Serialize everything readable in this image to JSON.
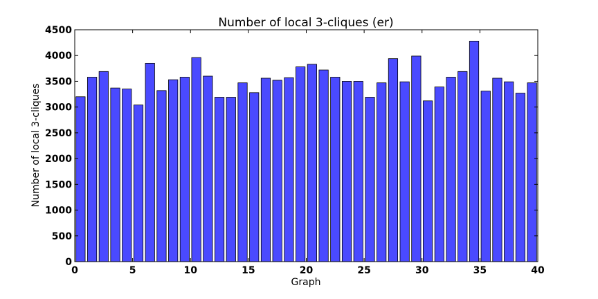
{
  "chart_data": {
    "type": "bar",
    "title": "Number of local 3-cliques (er)",
    "xlabel": "Graph",
    "ylabel": "Number of local 3-cliques",
    "xlim": [
      0,
      40
    ],
    "ylim": [
      0,
      4500
    ],
    "xticks": [
      0,
      5,
      10,
      15,
      20,
      25,
      30,
      35,
      40
    ],
    "yticks": [
      0,
      500,
      1000,
      1500,
      2000,
      2500,
      3000,
      3500,
      4000,
      4500
    ],
    "x": [
      0,
      1,
      2,
      3,
      4,
      5,
      6,
      7,
      8,
      9,
      10,
      11,
      12,
      13,
      14,
      15,
      16,
      17,
      18,
      19,
      20,
      21,
      22,
      23,
      24,
      25,
      26,
      27,
      28,
      29,
      30,
      31,
      32,
      33,
      34,
      35,
      36,
      37,
      38,
      39
    ],
    "values": [
      3200,
      3580,
      3690,
      3370,
      3350,
      3040,
      3850,
      3320,
      3530,
      3580,
      3960,
      3600,
      3190,
      3190,
      3470,
      3280,
      3560,
      3520,
      3570,
      3780,
      3830,
      3720,
      3580,
      3500,
      3500,
      3190,
      3470,
      3940,
      3490,
      3990,
      3120,
      3390,
      3580,
      3690,
      4280,
      3310,
      3560,
      3490,
      3270,
      3470
    ],
    "bar_width": 0.8,
    "bar_color": "#4a4aff",
    "edge_color": "#000000",
    "grid": false
  }
}
